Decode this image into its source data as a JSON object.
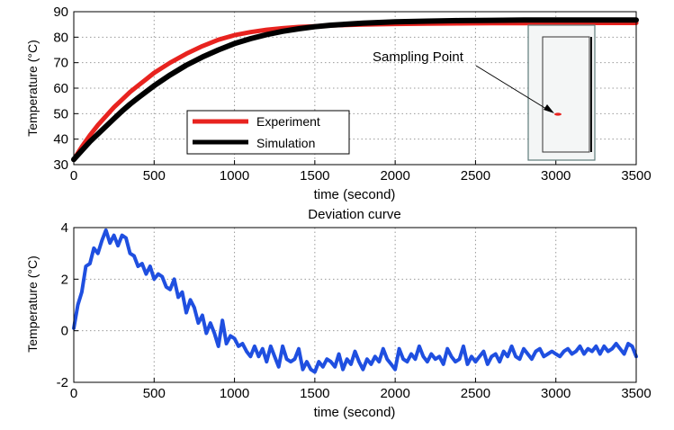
{
  "chart_data": [
    {
      "type": "line",
      "xlabel": "time (second)",
      "ylabel": "Temperature (°C)",
      "xlim": [
        0,
        3500
      ],
      "ylim": [
        30,
        90
      ],
      "xticks": [
        "0",
        "500",
        "1000",
        "1500",
        "2000",
        "2500",
        "3000",
        "3500"
      ],
      "yticks": [
        "30",
        "40",
        "50",
        "60",
        "70",
        "80",
        "90"
      ],
      "grid": true,
      "legend_position": "lower-center",
      "series": [
        {
          "name": "Experiment",
          "color": "#e8231f",
          "x": [
            0,
            50,
            100,
            150,
            200,
            250,
            300,
            350,
            400,
            450,
            500,
            600,
            700,
            800,
            900,
            1000,
            1100,
            1200,
            1300,
            1400,
            1500,
            1600,
            1800,
            2000,
            2200,
            2400,
            2600,
            2800,
            3000,
            3200,
            3400,
            3500
          ],
          "y": [
            32,
            37,
            41.5,
            45.5,
            49,
            52.5,
            55.5,
            58.5,
            61,
            63.5,
            66,
            70,
            73.5,
            76.5,
            79,
            80.8,
            82,
            82.9,
            83.5,
            84,
            84.3,
            84.6,
            85,
            85.2,
            85.3,
            85.4,
            85.5,
            85.5,
            85.6,
            85.6,
            85.6,
            85.6
          ]
        },
        {
          "name": "Simulation",
          "color": "#000000",
          "x": [
            0,
            50,
            100,
            150,
            200,
            250,
            300,
            350,
            400,
            450,
            500,
            600,
            700,
            800,
            900,
            1000,
            1100,
            1200,
            1300,
            1400,
            1500,
            1600,
            1800,
            2000,
            2200,
            2400,
            2600,
            2800,
            3000,
            3200,
            3400,
            3500
          ],
          "y": [
            32,
            35.5,
            39,
            42,
            45,
            48,
            51,
            53.7,
            56.2,
            58.6,
            61,
            65.2,
            69,
            72.2,
            75,
            77.5,
            79.4,
            81,
            82.3,
            83.3,
            84.1,
            84.7,
            85.5,
            86,
            86.3,
            86.5,
            86.6,
            86.7,
            86.7,
            86.7,
            86.7,
            86.7
          ]
        }
      ],
      "annotation": "Sampling Point"
    },
    {
      "type": "line",
      "title": "Deviation curve",
      "xlabel": "time (second)",
      "ylabel": "Temperature (°C)",
      "xlim": [
        0,
        3500
      ],
      "ylim": [
        -2,
        4
      ],
      "xticks": [
        "0",
        "500",
        "1000",
        "1500",
        "2000",
        "2500",
        "3000",
        "3500"
      ],
      "yticks": [
        "-2",
        "0",
        "2",
        "4"
      ],
      "grid": true,
      "series": [
        {
          "color": "#1f4fe0",
          "x": [
            0,
            25,
            50,
            75,
            100,
            125,
            150,
            175,
            200,
            225,
            250,
            275,
            300,
            325,
            350,
            375,
            400,
            425,
            450,
            475,
            500,
            525,
            550,
            575,
            600,
            625,
            650,
            675,
            700,
            725,
            750,
            775,
            800,
            825,
            850,
            875,
            900,
            925,
            950,
            975,
            1000,
            1025,
            1050,
            1075,
            1100,
            1125,
            1150,
            1175,
            1200,
            1225,
            1250,
            1275,
            1300,
            1325,
            1350,
            1375,
            1400,
            1425,
            1450,
            1475,
            1500,
            1525,
            1550,
            1575,
            1600,
            1625,
            1650,
            1675,
            1700,
            1725,
            1750,
            1775,
            1800,
            1825,
            1850,
            1875,
            1900,
            1925,
            1950,
            1975,
            2000,
            2025,
            2050,
            2075,
            2100,
            2125,
            2150,
            2175,
            2200,
            2225,
            2250,
            2275,
            2300,
            2325,
            2350,
            2375,
            2400,
            2425,
            2450,
            2475,
            2500,
            2525,
            2550,
            2575,
            2600,
            2625,
            2650,
            2675,
            2700,
            2725,
            2750,
            2775,
            2800,
            2825,
            2850,
            2875,
            2900,
            2925,
            2950,
            2975,
            3000,
            3025,
            3050,
            3075,
            3100,
            3125,
            3150,
            3175,
            3200,
            3225,
            3250,
            3275,
            3300,
            3325,
            3350,
            3375,
            3400,
            3425,
            3450,
            3475,
            3500
          ],
          "y": [
            0.1,
            1.0,
            1.5,
            2.5,
            2.6,
            3.2,
            3.0,
            3.5,
            3.9,
            3.4,
            3.7,
            3.3,
            3.7,
            3.6,
            3.0,
            2.9,
            2.5,
            2.6,
            2.2,
            2.5,
            2.0,
            2.2,
            2.1,
            1.7,
            1.6,
            2.0,
            1.3,
            1.5,
            0.7,
            1.2,
            0.9,
            0.3,
            0.6,
            -0.1,
            0.3,
            -0.1,
            -0.6,
            0.4,
            -0.5,
            -0.2,
            -0.3,
            -0.6,
            -0.5,
            -0.8,
            -1.0,
            -0.6,
            -1.0,
            -0.7,
            -1.2,
            -0.6,
            -1.0,
            -1.4,
            -0.6,
            -1.1,
            -1.2,
            -1.1,
            -0.7,
            -1.5,
            -1.2,
            -1.5,
            -1.6,
            -1.2,
            -1.4,
            -1.1,
            -1.2,
            -1.4,
            -0.9,
            -1.5,
            -1.1,
            -1.3,
            -0.8,
            -1.2,
            -1.5,
            -1.1,
            -1.3,
            -1.0,
            -1.2,
            -0.7,
            -1.1,
            -1.3,
            -1.5,
            -0.7,
            -1.1,
            -1.2,
            -0.9,
            -1.1,
            -0.6,
            -1.0,
            -1.2,
            -0.9,
            -1.1,
            -1.0,
            -1.3,
            -0.7,
            -1.0,
            -1.2,
            -1.1,
            -0.6,
            -1.3,
            -1.0,
            -1.2,
            -1.0,
            -0.8,
            -1.3,
            -1.0,
            -0.9,
            -1.2,
            -0.8,
            -1.0,
            -0.6,
            -1.0,
            -1.1,
            -0.7,
            -0.9,
            -1.1,
            -0.8,
            -0.7,
            -1.0,
            -0.9,
            -0.8,
            -0.9,
            -1.0,
            -0.8,
            -0.7,
            -0.9,
            -0.8,
            -0.6,
            -0.9,
            -0.7,
            -0.8,
            -0.6,
            -0.9,
            -0.6,
            -0.8,
            -0.7,
            -0.5,
            -0.7,
            -0.9,
            -0.5,
            -0.6,
            -1.0
          ]
        }
      ]
    }
  ]
}
